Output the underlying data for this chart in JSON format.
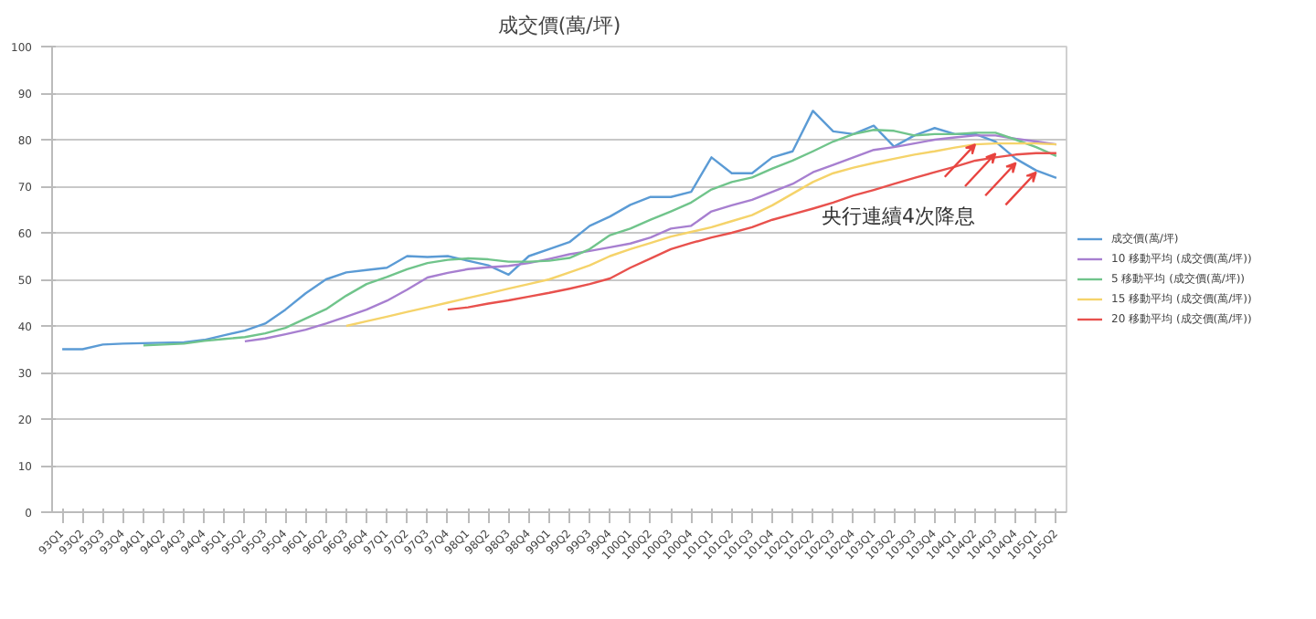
{
  "chart_data": {
    "type": "line",
    "title": "成交價(萬/坪)",
    "categories": [
      "93Q1",
      "93Q2",
      "93Q3",
      "93Q4",
      "94Q1",
      "94Q2",
      "94Q3",
      "94Q4",
      "95Q1",
      "95Q2",
      "95Q3",
      "95Q4",
      "96Q1",
      "96Q2",
      "96Q3",
      "96Q4",
      "97Q1",
      "97Q2",
      "97Q3",
      "97Q4",
      "98Q1",
      "98Q2",
      "98Q3",
      "98Q4",
      "99Q1",
      "99Q2",
      "99Q3",
      "99Q4",
      "100Q1",
      "100Q2",
      "100Q3",
      "100Q4",
      "101Q1",
      "101Q2",
      "101Q3",
      "101Q4",
      "102Q1",
      "102Q2",
      "102Q3",
      "102Q4",
      "103Q1",
      "103Q2",
      "103Q3",
      "103Q4",
      "104Q1",
      "104Q2",
      "104Q3",
      "104Q4",
      "105Q1",
      "105Q2"
    ],
    "series": [
      {
        "name": "成交價(萬/坪)",
        "color": "#5b9bd5",
        "values": [
          35,
          35,
          36,
          36.2,
          36.3,
          36.4,
          36.5,
          37,
          38,
          39,
          40.5,
          43.5,
          47,
          50,
          51.5,
          52,
          52.5,
          55,
          54.8,
          55,
          54,
          53,
          51,
          55,
          56.5,
          58,
          61.5,
          63.5,
          66,
          67.7,
          67.7,
          68.8,
          76.2,
          72.8,
          72.8,
          76.2,
          77.5,
          86.2,
          81.8,
          81.2,
          83,
          78.5,
          80.9,
          82.5,
          81.2,
          81.2,
          79.6,
          75.9,
          73.4,
          71.8
        ]
      },
      {
        "name": "10 移動平均 (成交價(萬/坪))",
        "color": "#a77fd0",
        "values": [
          null,
          null,
          null,
          null,
          null,
          null,
          null,
          null,
          null,
          36.7,
          37.3,
          38.2,
          39.2,
          40.5,
          42,
          43.5,
          45.4,
          47.8,
          50.4,
          51.4,
          52.2,
          52.6,
          52.9,
          53.5,
          54.4,
          55.4,
          56.1,
          56.9,
          57.7,
          59,
          60.9,
          61.5,
          64.6,
          65.9,
          67.1,
          68.8,
          70.5,
          73,
          74.6,
          76.2,
          77.8,
          78.4,
          79.2,
          80,
          80.5,
          80.9,
          80.9,
          80.2,
          79.6,
          79
        ]
      },
      {
        "name": "5 移動平均 (成交價(萬/坪))",
        "color": "#70c48b",
        "values": [
          null,
          null,
          null,
          null,
          35.8,
          36,
          36.2,
          36.8,
          37.2,
          37.6,
          38.4,
          39.6,
          41.6,
          43.6,
          46.5,
          49,
          50.5,
          52.2,
          53.5,
          54.2,
          54.5,
          54.3,
          53.8,
          53.8,
          54,
          54.6,
          56.5,
          59.5,
          60.9,
          62.8,
          64.6,
          66.5,
          69.3,
          70.9,
          71.9,
          73.8,
          75.5,
          77.5,
          79.6,
          81.2,
          82.1,
          81.9,
          80.9,
          81.2,
          81.2,
          81.5,
          81.5,
          80,
          78.4,
          76.5
        ]
      },
      {
        "name": "15 移動平均 (成交價(萬/坪))",
        "color": "#f5d36a",
        "values": [
          null,
          null,
          null,
          null,
          null,
          null,
          null,
          null,
          null,
          null,
          null,
          null,
          null,
          null,
          40,
          41,
          42,
          43,
          44,
          45,
          46,
          47,
          48,
          49,
          50,
          51.5,
          53,
          55,
          56.5,
          57.8,
          59.2,
          60.2,
          61.2,
          62.5,
          63.8,
          65.9,
          68.4,
          70.9,
          72.8,
          74,
          75,
          75.9,
          76.8,
          77.5,
          78.3,
          79,
          79.2,
          79.2,
          79.2,
          79
        ]
      },
      {
        "name": "20 移動平均 (成交價(萬/坪))",
        "color": "#e8514d",
        "values": [
          null,
          null,
          null,
          null,
          null,
          null,
          null,
          null,
          null,
          null,
          null,
          null,
          null,
          null,
          null,
          null,
          null,
          null,
          null,
          43.5,
          44,
          44.8,
          45.5,
          46.3,
          47.1,
          48,
          49,
          50.2,
          52.5,
          54.5,
          56.5,
          57.8,
          59,
          60,
          61.2,
          62.8,
          64,
          65.2,
          66.5,
          68,
          69.2,
          70.5,
          71.8,
          73,
          74.2,
          75.5,
          76.2,
          76.8,
          77.1,
          77.1
        ]
      }
    ],
    "ylim": [
      0,
      100
    ],
    "yticks": [
      0,
      10,
      20,
      30,
      40,
      50,
      60,
      70,
      80,
      90,
      100
    ],
    "grid": "y",
    "legend": "right",
    "marker": "none",
    "line_style": "solid",
    "annotations": [
      {
        "text": "央行連續4次降息",
        "x": "104Q3",
        "y": 77
      }
    ]
  }
}
